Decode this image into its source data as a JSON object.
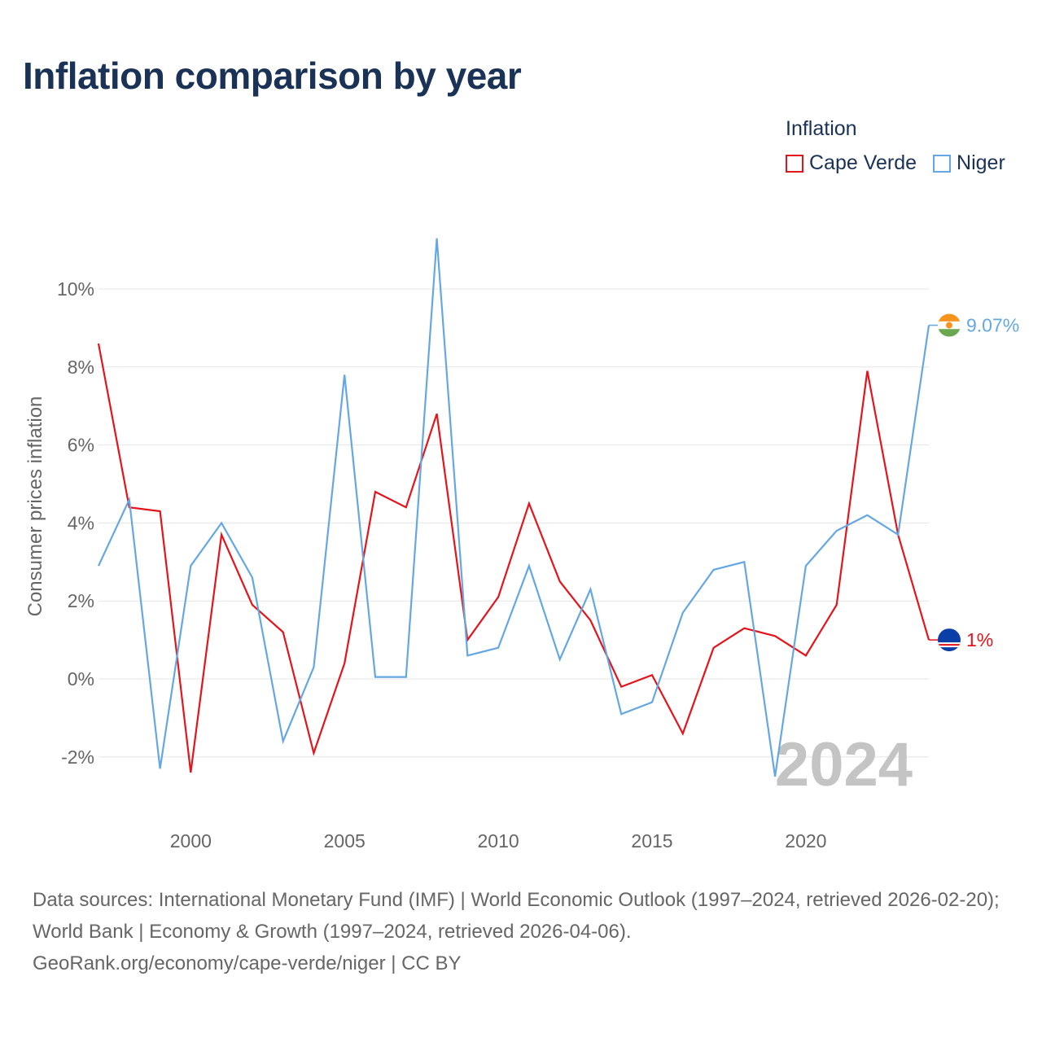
{
  "title": "Inflation comparison by year",
  "legend": {
    "title": "Inflation",
    "items": [
      {
        "name": "Cape Verde",
        "color": "#e3141b"
      },
      {
        "name": "Niger",
        "color": "#65a7e3"
      }
    ]
  },
  "chart_data": {
    "type": "line",
    "title": "Inflation comparison by year",
    "xlabel": "",
    "ylabel": "Consumer prices inflation",
    "x": [
      1997,
      1998,
      1999,
      2000,
      2001,
      2002,
      2003,
      2004,
      2005,
      2006,
      2007,
      2008,
      2009,
      2010,
      2011,
      2012,
      2013,
      2014,
      2015,
      2016,
      2017,
      2018,
      2019,
      2020,
      2021,
      2022,
      2023,
      2024
    ],
    "xticks": [
      2000,
      2005,
      2010,
      2015,
      2020
    ],
    "xlim": [
      1997,
      2024
    ],
    "ylim": [
      -3.5,
      11.5
    ],
    "yticks": [
      -2,
      0,
      2,
      4,
      6,
      8,
      10
    ],
    "ytick_labels": [
      "-2%",
      "0%",
      "2%",
      "4%",
      "6%",
      "8%",
      "10%"
    ],
    "grid": true,
    "series": [
      {
        "name": "Cape Verde",
        "color": "#e3141b",
        "values": [
          8.6,
          4.4,
          4.3,
          -2.4,
          3.7,
          1.9,
          1.2,
          -1.9,
          0.4,
          4.8,
          4.4,
          6.8,
          1.0,
          2.1,
          4.5,
          2.5,
          1.5,
          -0.2,
          0.1,
          -1.4,
          0.8,
          1.3,
          1.1,
          0.6,
          1.9,
          7.9,
          3.7,
          1.0
        ],
        "end_label": "1%"
      },
      {
        "name": "Niger",
        "color": "#65a7e3",
        "values": [
          2.9,
          4.6,
          -2.3,
          2.9,
          4.0,
          2.6,
          -1.6,
          0.3,
          7.8,
          0.05,
          0.05,
          11.3,
          0.6,
          0.8,
          2.9,
          0.5,
          2.3,
          -0.9,
          -0.6,
          1.7,
          2.8,
          3.0,
          -2.5,
          2.9,
          3.8,
          4.2,
          3.7,
          9.07
        ],
        "end_label": "9.07%"
      }
    ],
    "watermark_year": "2024"
  },
  "source": {
    "line1": "Data sources: International Monetary Fund (IMF) | World Economic Outlook (1997–2024, retrieved 2026-02-20); World Bank | Economy & Growth (1997–2024, retrieved 2026-04-06).",
    "line2": "GeoRank.org/economy/cape-verde/niger | CC BY"
  }
}
